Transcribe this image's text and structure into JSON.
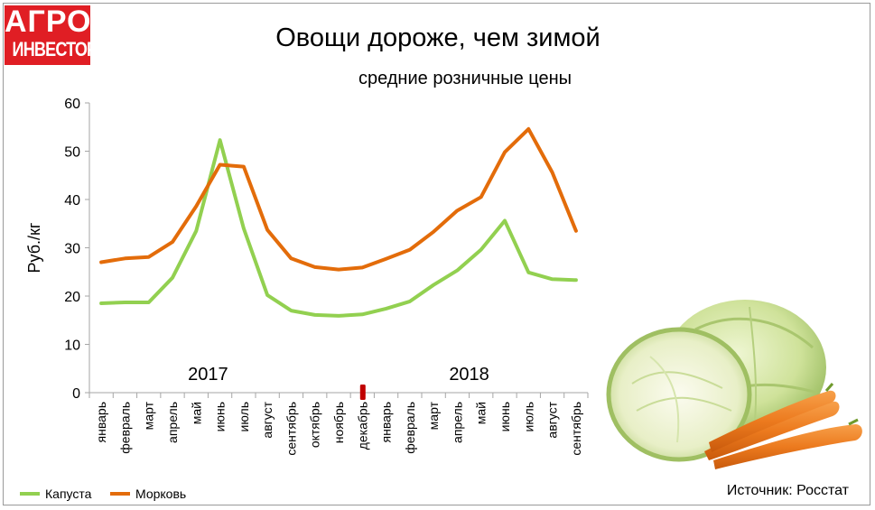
{
  "logo": {
    "line1": "АГРО",
    "line2": "ИНВЕСТОР"
  },
  "title": "Овощи дороже, чем зимой",
  "subtitle": "средние розничные цены",
  "source": "Источник: Росстат",
  "colors": {
    "cabbage": "#92d050",
    "carrot": "#e36c0a",
    "logo_red": "#e01e24",
    "marker": "#c00000"
  },
  "photo": {
    "description_icon": "cabbage-and-carrots-illustration"
  },
  "chart_data": {
    "type": "line",
    "ylabel": "Руб./кг",
    "xlabel": "",
    "ylim": [
      0,
      60
    ],
    "yticks": [
      0,
      10,
      20,
      30,
      40,
      50,
      60
    ],
    "year_labels": [
      {
        "text": "2017",
        "category_index": 4.5
      },
      {
        "text": "2018",
        "category_index": 15.5
      }
    ],
    "categories": [
      "январь",
      "февраль",
      "март",
      "апрель",
      "май",
      "июнь",
      "июль",
      "август",
      "сентябрь",
      "октябрь",
      "ноябрь",
      "декабрь",
      "январь",
      "февраль",
      "март",
      "апрель",
      "май",
      "июнь",
      "июль",
      "август",
      "сентябрь"
    ],
    "series": [
      {
        "name": "Капуста",
        "color": "#92d050",
        "values": [
          18.5,
          18.7,
          18.7,
          23.8,
          33.5,
          52.3,
          34.0,
          20.2,
          17.0,
          16.1,
          15.9,
          16.2,
          17.4,
          18.9,
          22.3,
          25.3,
          29.6,
          35.6,
          24.9,
          23.5,
          23.3
        ]
      },
      {
        "name": "Морковь",
        "color": "#e36c0a",
        "values": [
          27.0,
          27.8,
          28.1,
          31.2,
          38.6,
          47.2,
          46.8,
          33.7,
          27.8,
          26.0,
          25.5,
          25.9,
          27.7,
          29.6,
          33.3,
          37.7,
          40.5,
          49.8,
          54.6,
          45.6,
          33.5
        ]
      }
    ],
    "grid": false,
    "legend_position": "bottom-left"
  }
}
